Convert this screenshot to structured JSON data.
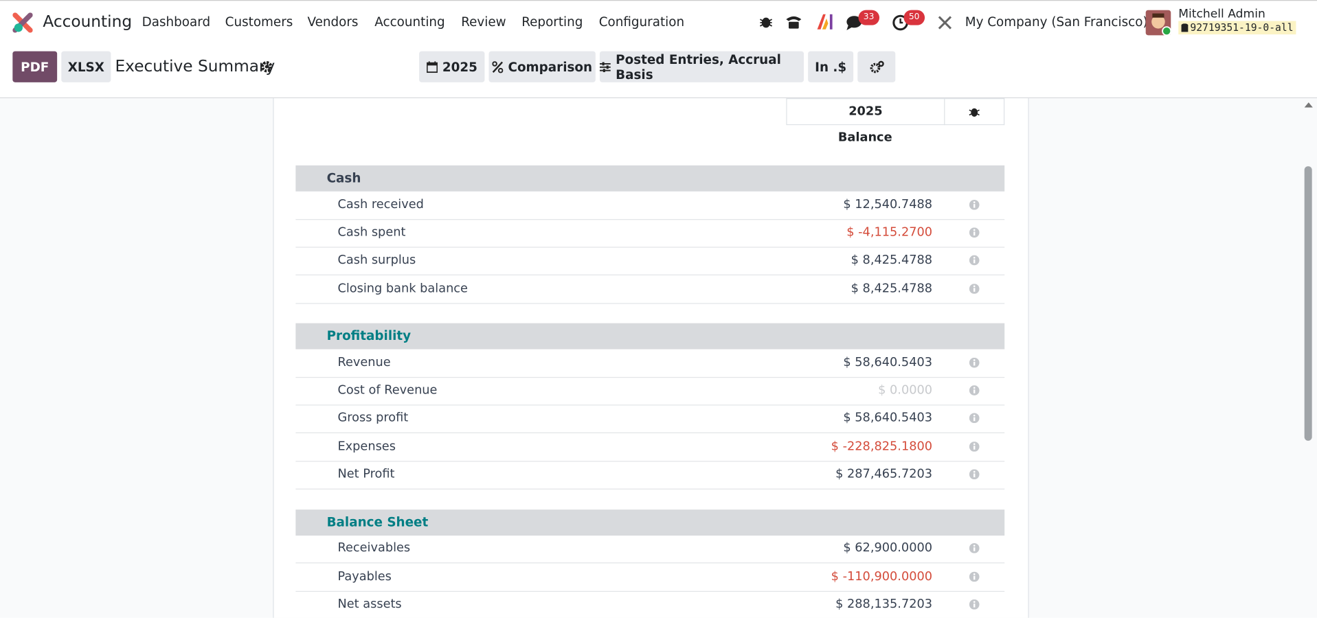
{
  "navbar": {
    "app_name": "Accounting",
    "menu": [
      "Dashboard",
      "Customers",
      "Vendors",
      "Accounting",
      "Review",
      "Reporting",
      "Configuration"
    ],
    "chat_badge": "33",
    "activity_badge": "50",
    "company": "My Company (San Francisco)",
    "user_name": "Mitchell Admin",
    "database": "92719351-19-0-all"
  },
  "control_panel": {
    "buttons": [
      "PDF",
      "XLSX"
    ],
    "title": "Executive Summary",
    "filters": [
      "2025",
      "Comparison",
      "Posted Entries, Accrual Basis",
      "In .$"
    ]
  },
  "report": {
    "column_header": "2025",
    "column_subheader": "Balance",
    "sections": [
      {
        "title": "Cash",
        "rows": [
          [
            "Cash received",
            "$ 12,540.7488"
          ],
          [
            "Cash spent",
            "$ -4,115.2700"
          ],
          [
            "Cash surplus",
            "$ 8,425.4788"
          ],
          [
            "Closing bank balance",
            "$ 8,425.4788"
          ]
        ]
      },
      {
        "title": "Profitability",
        "rows": [
          [
            "Revenue",
            "$ 58,640.5403"
          ],
          [
            "Cost of Revenue",
            "$ 0.0000"
          ],
          [
            "Gross profit",
            "$ 58,640.5403"
          ],
          [
            "Expenses",
            "$ -228,825.1800"
          ],
          [
            "Net Profit",
            "$ 287,465.7203"
          ]
        ]
      },
      {
        "title": "Balance Sheet",
        "rows": [
          [
            "Receivables",
            "$ 62,900.0000"
          ],
          [
            "Payables",
            "$ -110,900.0000"
          ],
          [
            "Net assets",
            "$ 288,135.7203"
          ]
        ]
      }
    ]
  }
}
